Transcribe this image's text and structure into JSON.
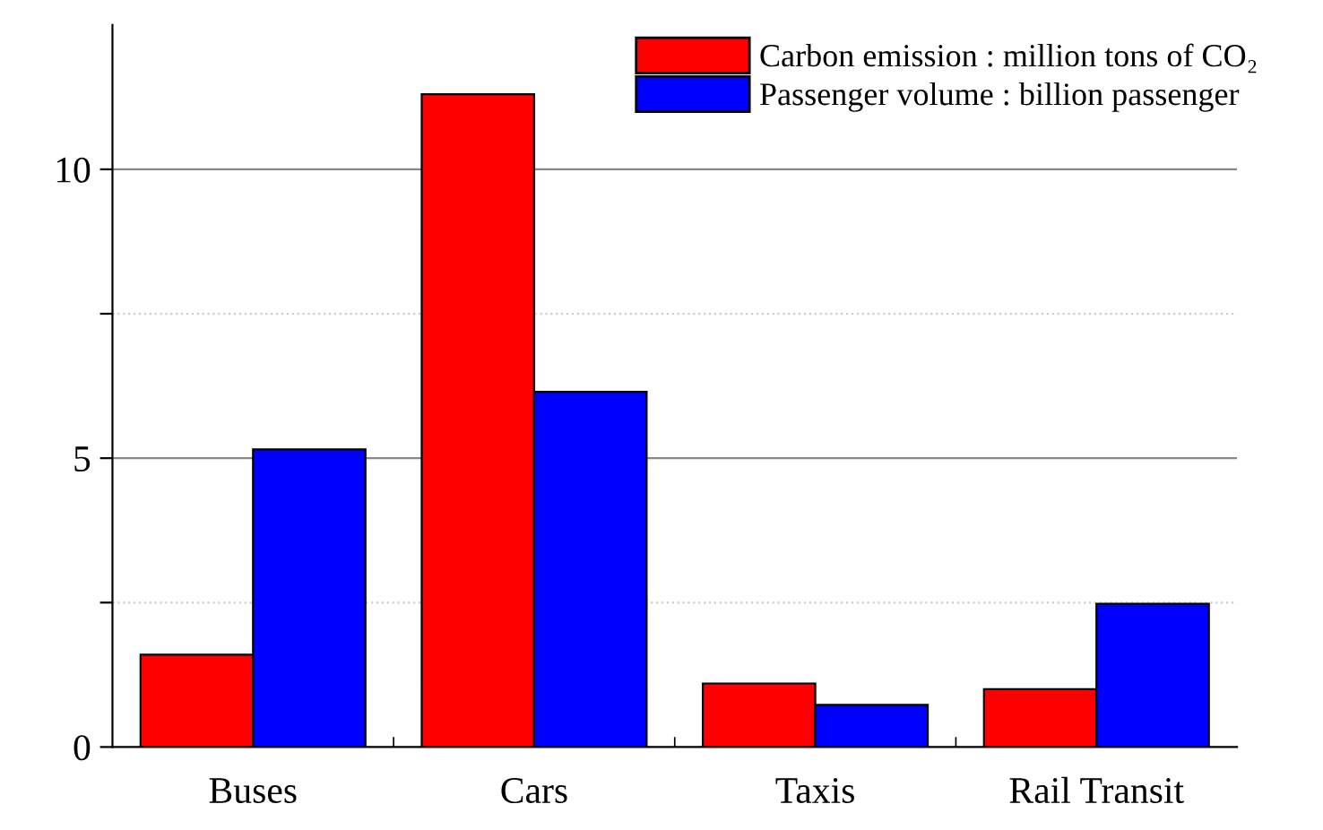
{
  "chart_data": {
    "type": "bar",
    "categories": [
      "Buses",
      "Cars",
      "Taxis",
      "Rail Transit"
    ],
    "series": [
      {
        "name": "Carbon emission : million tons of CO₂",
        "color": "#ff0000",
        "values": [
          1.6,
          11.3,
          1.1,
          1.0
        ]
      },
      {
        "name": "Passenger volume : billion passenger",
        "color": "#0000ff",
        "values": [
          5.15,
          6.15,
          0.73,
          2.48
        ]
      }
    ],
    "ylim": [
      0,
      12.5
    ],
    "yticks": [
      0,
      {
        "value": 2.5,
        "label": null
      },
      5,
      {
        "value": 7.5,
        "label": null
      },
      10
    ],
    "grid": "y",
    "legend": "top right"
  }
}
